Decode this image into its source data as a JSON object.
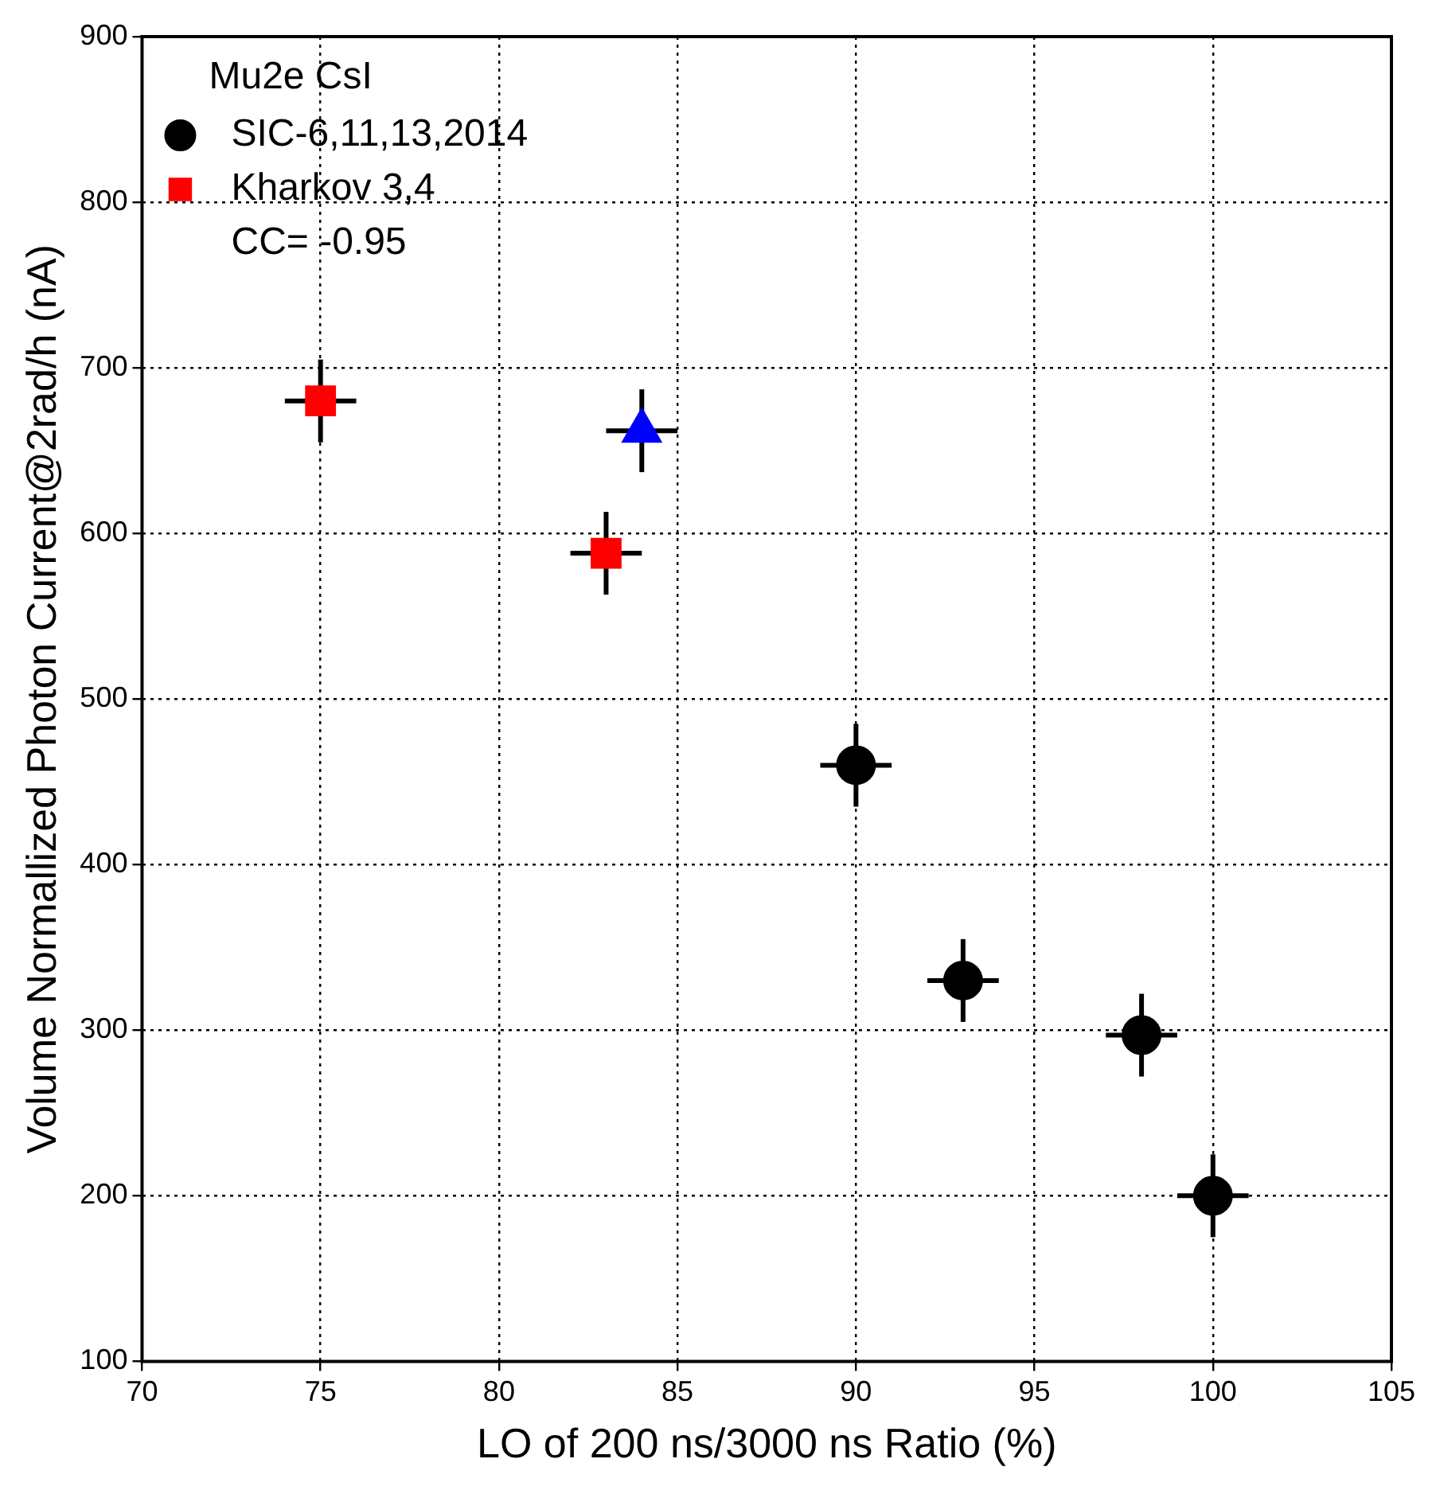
{
  "chart_data": {
    "type": "scatter",
    "xlabel": "LO of 200 ns/3000 ns Ratio (%)",
    "ylabel": "Volume Normallized Photon Current@2rad/h (nA)",
    "legend_title": "Mu2e CsI",
    "legend": "top left",
    "grid": true,
    "xlim": [
      70,
      105
    ],
    "xticks": [
      70,
      75,
      80,
      85,
      90,
      95,
      100,
      105
    ],
    "ylim": [
      100,
      900
    ],
    "yticks": [
      100,
      200,
      300,
      400,
      500,
      600,
      700,
      800,
      900
    ],
    "annotations": [
      "CC= -0.95"
    ],
    "series": [
      {
        "name": "SIC-6,11,13,2014",
        "color": "#000000",
        "marker": "circle",
        "x": [
          90,
          93,
          98,
          100
        ],
        "values": [
          460,
          330,
          297,
          200
        ],
        "errors": [
          25,
          25,
          25,
          25
        ],
        "xerrors": [
          1,
          1,
          1,
          1
        ]
      },
      {
        "name": "Kharkov 3,4",
        "color": "#ff0000",
        "marker": "square",
        "x": [
          75,
          83
        ],
        "values": [
          680,
          588
        ],
        "errors": [
          25,
          25
        ],
        "xerrors": [
          1,
          1
        ]
      },
      {
        "color": "#0000ff",
        "marker": "triangle",
        "x": [
          84
        ],
        "values": [
          662
        ],
        "errors": [
          25
        ],
        "xerrors": [
          1
        ]
      }
    ]
  }
}
